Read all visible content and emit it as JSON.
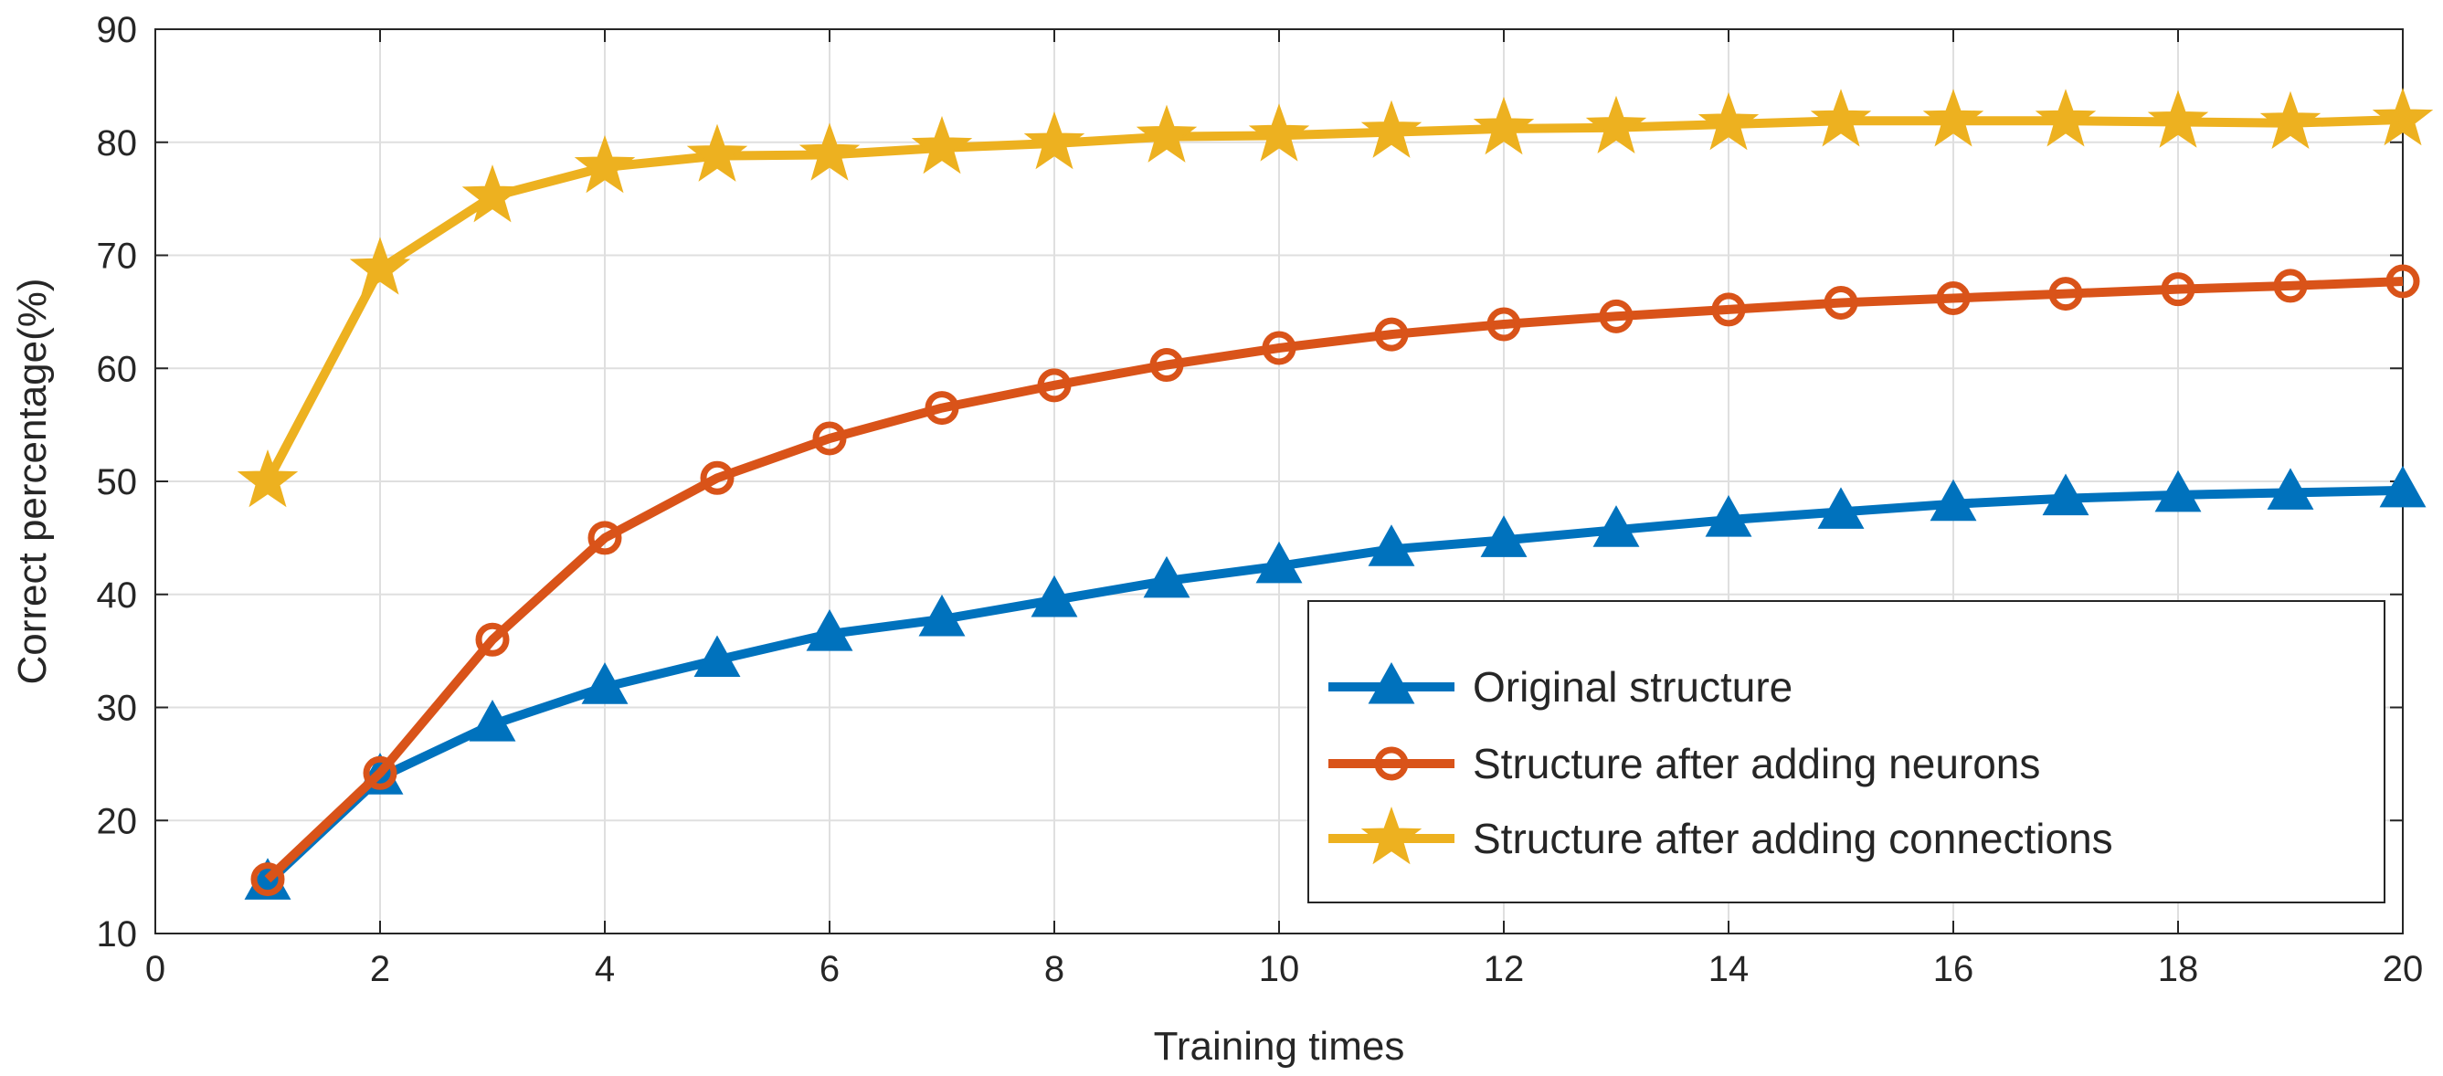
{
  "chart_data": {
    "type": "line",
    "title": "",
    "xlabel": "Training times",
    "ylabel": "Correct percentage(%)",
    "xlim": [
      0,
      20
    ],
    "ylim": [
      10,
      90
    ],
    "xticks": [
      "0",
      "2",
      "4",
      "6",
      "8",
      "10",
      "12",
      "14",
      "16",
      "18",
      "20"
    ],
    "yticks": [
      "10",
      "20",
      "30",
      "40",
      "50",
      "60",
      "70",
      "80",
      "90"
    ],
    "grid": true,
    "legend_position": "lower-right",
    "x": [
      1,
      2,
      3,
      4,
      5,
      6,
      7,
      8,
      9,
      10,
      11,
      12,
      13,
      14,
      15,
      16,
      17,
      18,
      19,
      20
    ],
    "series": [
      {
        "name": "Original structure",
        "marker": "triangle",
        "color": "#0072BD",
        "values": [
          14.5,
          23.8,
          28.5,
          31.8,
          34.2,
          36.5,
          37.8,
          39.5,
          41.2,
          42.5,
          44.0,
          44.8,
          45.7,
          46.6,
          47.3,
          48.0,
          48.5,
          48.8,
          49.0,
          49.2
        ]
      },
      {
        "name": "Structure after adding neurons",
        "marker": "circle",
        "color": "#D95319",
        "values": [
          14.8,
          24.2,
          36.0,
          45.0,
          50.3,
          53.8,
          56.5,
          58.5,
          60.3,
          61.8,
          63.0,
          63.9,
          64.6,
          65.2,
          65.8,
          66.2,
          66.6,
          67.0,
          67.3,
          67.7
        ]
      },
      {
        "name": "Structure after adding connections",
        "marker": "star",
        "color": "#EDB120",
        "values": [
          50.0,
          68.8,
          75.2,
          77.8,
          78.8,
          78.9,
          79.5,
          79.9,
          80.5,
          80.6,
          80.9,
          81.2,
          81.3,
          81.6,
          81.9,
          81.9,
          81.9,
          81.8,
          81.7,
          82.0
        ]
      }
    ]
  }
}
